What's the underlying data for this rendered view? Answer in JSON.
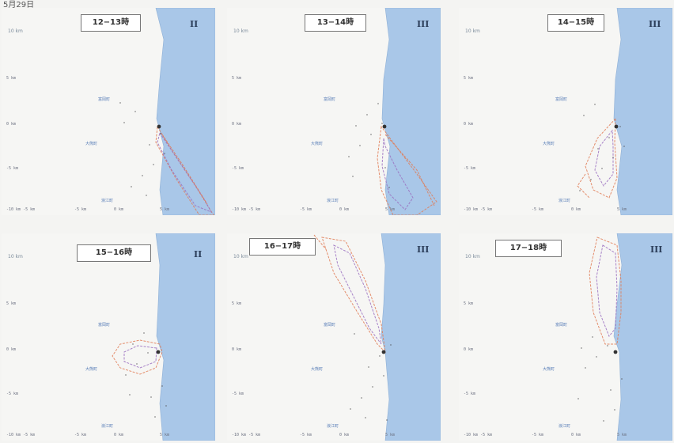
{
  "page": {
    "caption": "5月29日"
  },
  "colors": {
    "sea": "#a9c7e8",
    "land": "#f6f6f4",
    "contour_outer": "#e07b55",
    "contour_inner": "#9a6fc0",
    "label_blue": "#5a7fb8"
  },
  "panels": [
    {
      "time": "12−13時",
      "class": "II",
      "scale": "10 km"
    },
    {
      "time": "13−14時",
      "class": "III",
      "scale": "10 km"
    },
    {
      "time": "14−15時",
      "class": "III",
      "scale": "10 km"
    },
    {
      "time": "15−16時",
      "class": "II",
      "scale": "10 km"
    },
    {
      "time": "16−17時",
      "class": "III",
      "scale": "10 km"
    },
    {
      "time": "17−18時",
      "class": "III",
      "scale": "10 km"
    }
  ],
  "axes": {
    "y_labels": [
      "5 km",
      "0 km",
      "-5 km"
    ],
    "x_labels": [
      "-10 km -5 km",
      "-5 km",
      "0 km",
      "5 km"
    ]
  },
  "places": [
    "富岡町",
    "大熊町",
    "浪江町"
  ]
}
